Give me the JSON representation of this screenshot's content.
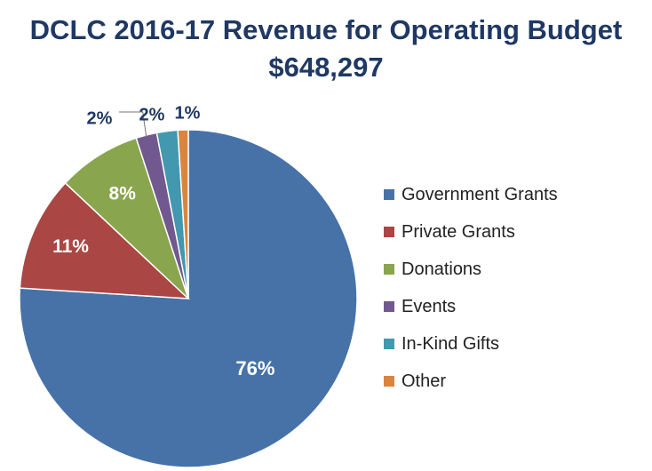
{
  "chart_data": {
    "type": "pie",
    "title": "DCLC 2016-17 Revenue for Operating Budget",
    "subtitle": "$648,297",
    "categories": [
      "Government Grants",
      "Private Grants",
      "Donations",
      "Events",
      "In-Kind Gifts",
      "Other"
    ],
    "values": [
      76,
      11,
      8,
      2,
      2,
      1
    ],
    "value_labels": [
      "76%",
      "11%",
      "8%",
      "2%",
      "2%",
      "1%"
    ],
    "colors": [
      "#4672a8",
      "#aa4643",
      "#89a54e",
      "#71588f",
      "#4198af",
      "#db843d"
    ],
    "legend_position": "right",
    "start_angle": "12 o'clock, clockwise"
  }
}
